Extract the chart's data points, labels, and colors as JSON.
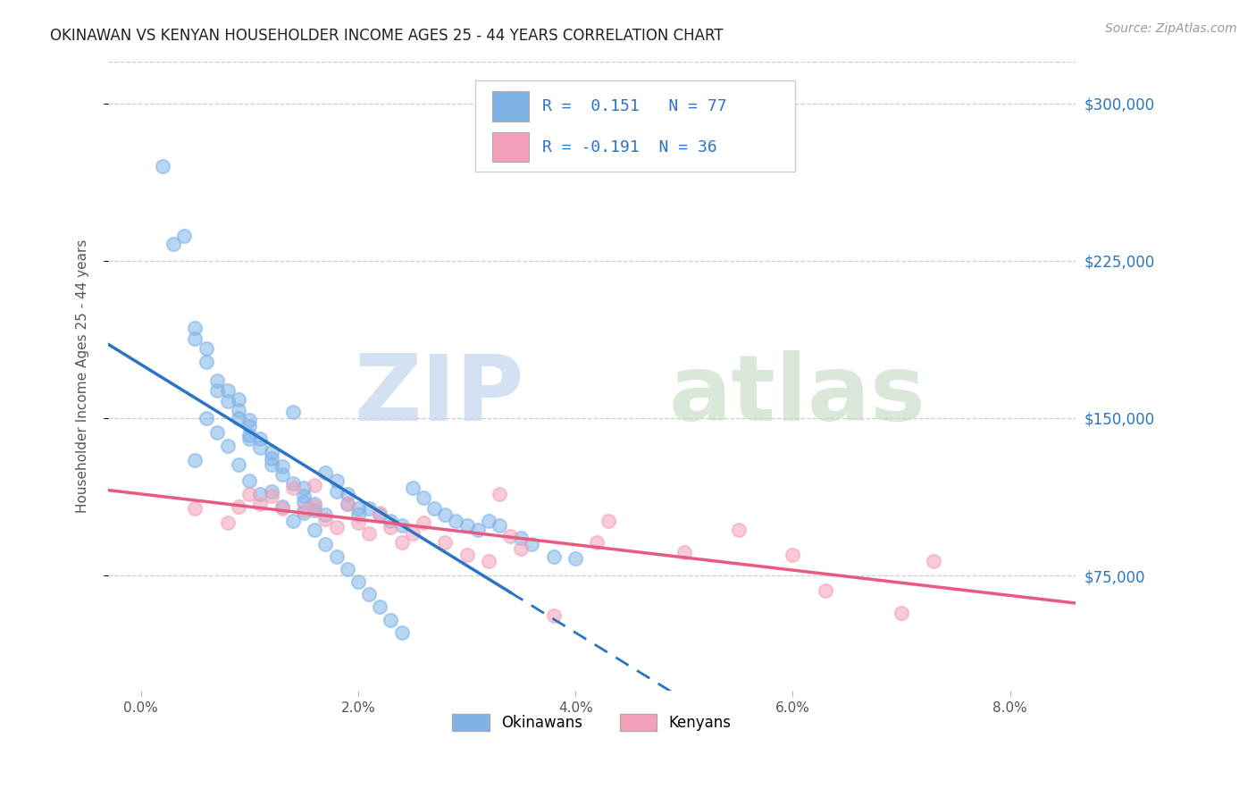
{
  "title": "OKINAWAN VS KENYAN HOUSEHOLDER INCOME AGES 25 - 44 YEARS CORRELATION CHART",
  "source": "Source: ZipAtlas.com",
  "ylabel": "Householder Income Ages 25 - 44 years",
  "xlabel_vals": [
    0.0,
    0.02,
    0.04,
    0.06,
    0.08
  ],
  "xlabel_labels": [
    "0.0%",
    "2.0%",
    "4.0%",
    "6.0%",
    "8.0%"
  ],
  "ytick_vals": [
    75000,
    150000,
    225000,
    300000
  ],
  "ylim": [
    20000,
    320000
  ],
  "xlim": [
    -0.003,
    0.086
  ],
  "legend_bottom": [
    "Okinawans",
    "Kenyans"
  ],
  "R_blue": 0.151,
  "N_blue": 77,
  "R_pink": -0.191,
  "N_pink": 36,
  "blue_scatter_color": "#7fb3e8",
  "pink_scatter_color": "#f4a0b8",
  "blue_line_color": "#2b74c4",
  "pink_line_color": "#e85a80",
  "right_tick_color": "#2b74c4",
  "title_color": "#222222",
  "grid_color": "#cccccc",
  "blue_scatter_x": [
    0.002,
    0.003,
    0.004,
    0.005,
    0.005,
    0.006,
    0.006,
    0.007,
    0.007,
    0.008,
    0.008,
    0.009,
    0.009,
    0.009,
    0.01,
    0.01,
    0.01,
    0.01,
    0.011,
    0.011,
    0.012,
    0.012,
    0.012,
    0.013,
    0.013,
    0.014,
    0.014,
    0.015,
    0.015,
    0.015,
    0.016,
    0.016,
    0.017,
    0.017,
    0.018,
    0.018,
    0.019,
    0.019,
    0.02,
    0.02,
    0.021,
    0.022,
    0.023,
    0.024,
    0.025,
    0.026,
    0.027,
    0.028,
    0.029,
    0.03,
    0.031,
    0.032,
    0.033,
    0.035,
    0.036,
    0.038,
    0.04,
    0.005,
    0.006,
    0.007,
    0.008,
    0.009,
    0.01,
    0.011,
    0.012,
    0.013,
    0.014,
    0.015,
    0.016,
    0.017,
    0.018,
    0.019,
    0.02,
    0.021,
    0.022,
    0.023,
    0.024
  ],
  "blue_scatter_y": [
    270000,
    233000,
    237000,
    193000,
    188000,
    183000,
    177000,
    168000,
    163000,
    163000,
    158000,
    159000,
    154000,
    150000,
    149000,
    146000,
    142000,
    140000,
    140000,
    136000,
    134000,
    131000,
    128000,
    127000,
    123000,
    153000,
    119000,
    117000,
    113000,
    110000,
    109000,
    106000,
    124000,
    104000,
    120000,
    115000,
    114000,
    109000,
    107000,
    104000,
    107000,
    104000,
    101000,
    99000,
    117000,
    112000,
    107000,
    104000,
    101000,
    99000,
    97000,
    101000,
    99000,
    93000,
    90000,
    84000,
    83000,
    130000,
    150000,
    143000,
    137000,
    128000,
    120000,
    114000,
    115000,
    108000,
    101000,
    105000,
    97000,
    90000,
    84000,
    78000,
    72000,
    66000,
    60000,
    54000,
    48000
  ],
  "pink_scatter_x": [
    0.005,
    0.008,
    0.009,
    0.01,
    0.011,
    0.012,
    0.013,
    0.014,
    0.015,
    0.016,
    0.016,
    0.017,
    0.018,
    0.019,
    0.02,
    0.021,
    0.022,
    0.023,
    0.024,
    0.025,
    0.026,
    0.028,
    0.03,
    0.032,
    0.033,
    0.034,
    0.035,
    0.038,
    0.042,
    0.043,
    0.05,
    0.055,
    0.06,
    0.063,
    0.07,
    0.073
  ],
  "pink_scatter_y": [
    107000,
    100000,
    108000,
    114000,
    109000,
    113000,
    107000,
    117000,
    106000,
    108000,
    118000,
    102000,
    98000,
    109000,
    100000,
    95000,
    105000,
    98000,
    91000,
    95000,
    100000,
    91000,
    85000,
    82000,
    114000,
    94000,
    88000,
    56000,
    91000,
    101000,
    86000,
    97000,
    85000,
    68000,
    57000,
    82000
  ],
  "blue_solid_xlim": 0.034,
  "blue_dashed_xlim": 0.086
}
